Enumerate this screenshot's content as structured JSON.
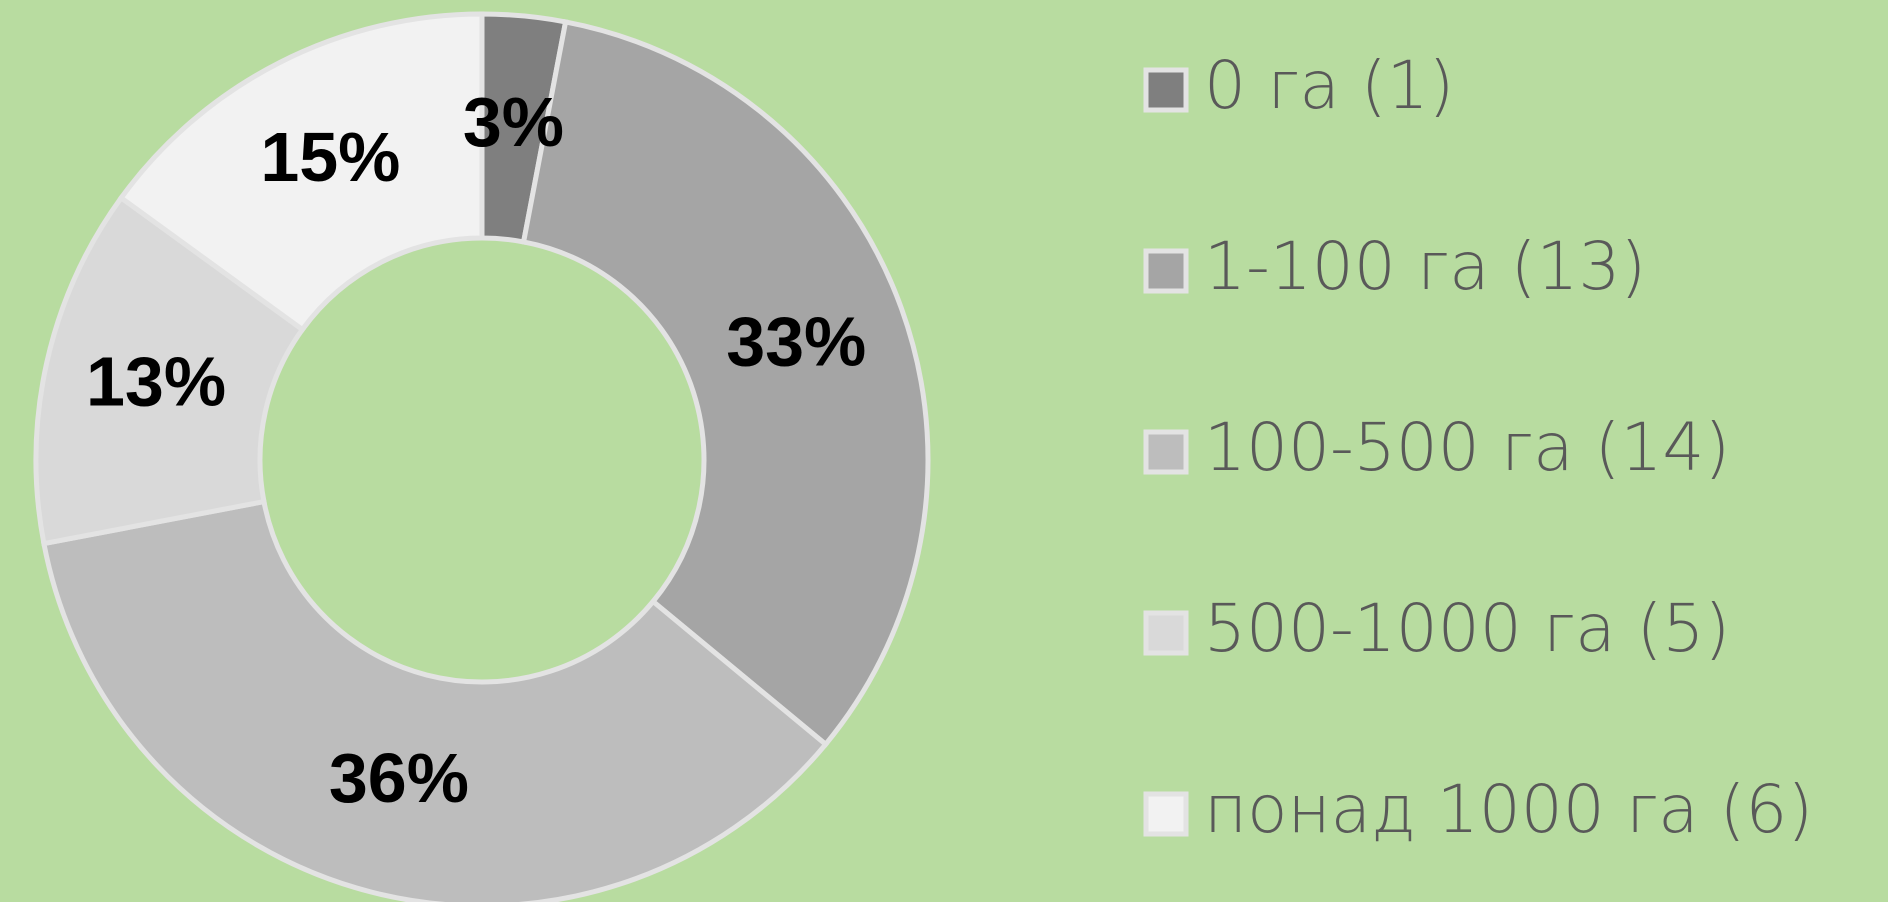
{
  "chart_data": {
    "type": "donut",
    "categories": [
      "0 га (1)",
      "1-100 га (13)",
      "100-500 га (14)",
      "500-1000 га (5)",
      "понад 1000 га (6)"
    ],
    "values": [
      3,
      33,
      36,
      13,
      15
    ],
    "value_labels": [
      "3%",
      "33%",
      "36%",
      "13%",
      "15%"
    ],
    "colors": [
      "#7f7f7f",
      "#a5a5a5",
      "#bdbdbd",
      "#d9d9d9",
      "#f2f2f2"
    ],
    "legend": "right"
  }
}
